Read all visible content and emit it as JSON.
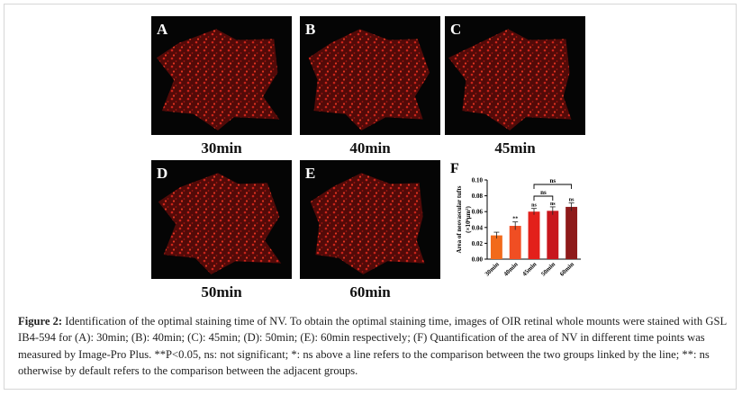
{
  "panels": [
    {
      "letter": "A",
      "time": "30min"
    },
    {
      "letter": "B",
      "time": "40min"
    },
    {
      "letter": "C",
      "time": "45min"
    },
    {
      "letter": "D",
      "time": "50min"
    },
    {
      "letter": "E",
      "time": "60min"
    }
  ],
  "chart_data": {
    "type": "bar",
    "panel_letter": "F",
    "y_label": "Area of neovascular tufts",
    "y_unit": "(×10⁶μm²)",
    "categories": [
      "30min",
      "40min",
      "45min",
      "50min",
      "60min"
    ],
    "values": [
      0.03,
      0.042,
      0.06,
      0.061,
      0.066
    ],
    "errors": [
      0.004,
      0.005,
      0.004,
      0.005,
      0.005
    ],
    "colors": [
      "#f26a1b",
      "#f04e23",
      "#e3201b",
      "#c8161d",
      "#8e1a1a"
    ],
    "significance": [
      null,
      "**",
      "ns",
      "ns",
      "ns"
    ],
    "comparisons": [
      {
        "from": "45min",
        "to": "50min",
        "label": "ns"
      },
      {
        "from": "45min",
        "to": "60min",
        "label": "ns"
      }
    ],
    "ylim": [
      0,
      0.1
    ],
    "yticks": [
      {
        "value": 0,
        "label": "0.00"
      },
      {
        "value": 0.02,
        "label": "0.02"
      },
      {
        "value": 0.04,
        "label": "0.04"
      },
      {
        "value": 0.06,
        "label": "0.06"
      },
      {
        "value": 0.08,
        "label": "0.08"
      },
      {
        "value": 0.1,
        "label": "0.10"
      }
    ]
  },
  "caption": {
    "label": "Figure 2:",
    "text": "Identification of the optimal staining time of NV. To obtain the optimal staining time, images of OIR retinal whole mounts were stained with GSL IB4-594 for (A): 30min; (B): 40min; (C): 45min; (D): 50min; (E): 60min respectively; (F) Quantification of the area of NV in different time points was measured by Image-Pro Plus. **P<0.05, ns: not significant; *: ns above a line refers to the comparison between the two groups linked by the line; **: ns otherwise by default refers to the comparison between the adjacent groups."
  }
}
